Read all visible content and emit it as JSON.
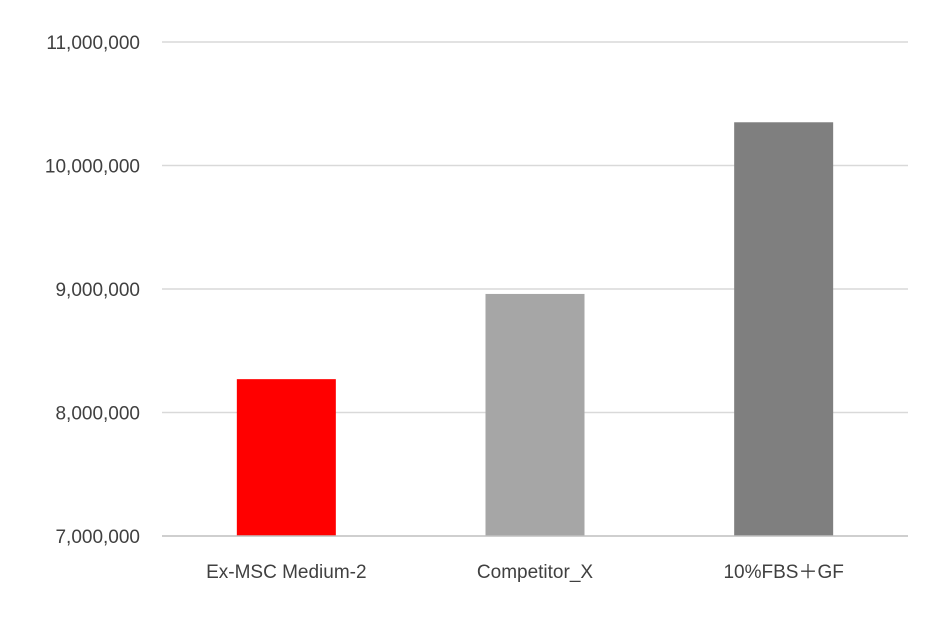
{
  "chart_data": {
    "type": "bar",
    "title": "",
    "xlabel": "",
    "ylabel": "",
    "categories": [
      "Ex-MSC Medium-2",
      "Competitor_X",
      "10%FBS＋GF"
    ],
    "values": [
      8270000,
      8960000,
      10350000
    ],
    "bar_colors": [
      "#ff0000",
      "#a6a6a6",
      "#7f7f7f"
    ],
    "ylim": [
      7000000,
      11000000
    ],
    "yticks": [
      7000000,
      8000000,
      9000000,
      10000000,
      11000000
    ],
    "ytick_labels": [
      "7,000,000",
      "8,000,000",
      "9,000,000",
      "10,000,000",
      "11,000,000"
    ],
    "grid": true,
    "legend": "none"
  }
}
